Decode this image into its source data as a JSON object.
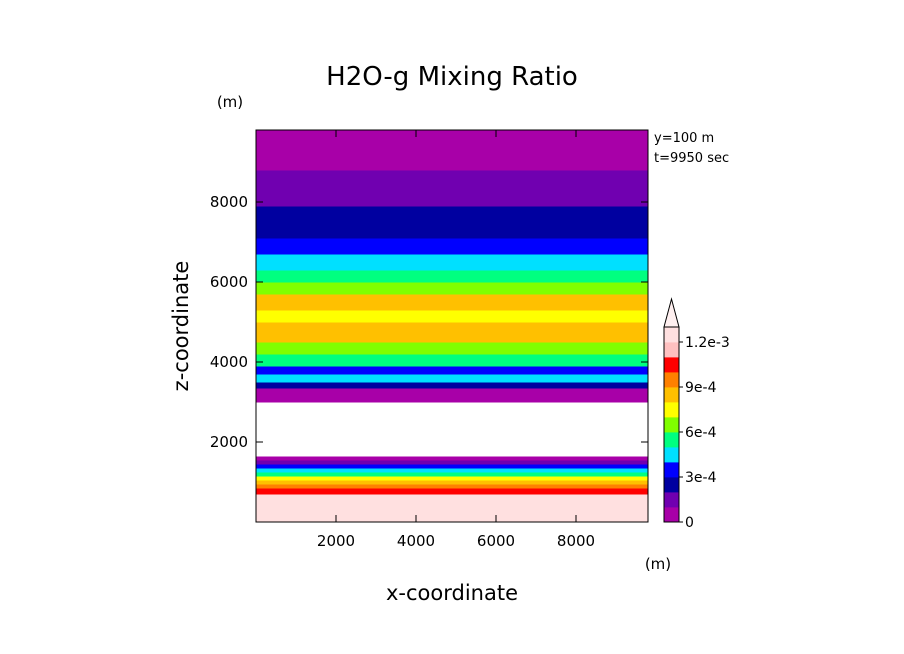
{
  "chart_data": {
    "type": "heatmap",
    "title": "H2O-g Mixing Ratio",
    "xlabel": "x-coordinate",
    "ylabel": "z-coordinate",
    "x_unit": "(m)",
    "y_unit": "(m)",
    "annotations": [
      "y=100 m",
      "t=9950 sec"
    ],
    "xlim": [
      0,
      9800
    ],
    "ylim": [
      0,
      9800
    ],
    "x_ticks": [
      2000,
      4000,
      6000,
      8000
    ],
    "x_tick_labels": [
      "2000",
      "4000",
      "6000",
      "8000"
    ],
    "y_ticks": [
      2000,
      4000,
      6000,
      8000
    ],
    "y_tick_labels": [
      "2000",
      "4000",
      "6000",
      "8000"
    ],
    "colorbar": {
      "labels": [
        "1.2e-3",
        "9e-4",
        "6e-4",
        "3e-4",
        "0"
      ],
      "label_values": [
        0.0012,
        0.0009,
        0.0006,
        0.0003,
        0
      ],
      "levels": [
        0,
        0.0001,
        0.0002,
        0.0003,
        0.0004,
        0.0005,
        0.0006,
        0.0007,
        0.0008,
        0.0009,
        0.001,
        0.0011,
        0.0012
      ],
      "colors": [
        "#a800a8",
        "#7000b0",
        "#0000a0",
        "#0000ff",
        "#00e0ff",
        "#00ff80",
        "#80ff00",
        "#ffff00",
        "#ffc000",
        "#ff8000",
        "#ff0000",
        "#ffc0c0",
        "#ffe0e0"
      ],
      "extend_max": true
    },
    "bands": [
      {
        "zmin": 0,
        "zmax": 700,
        "color": "#ffe0e0"
      },
      {
        "zmin": 700,
        "zmax": 850,
        "color": "#ff0000"
      },
      {
        "zmin": 850,
        "zmax": 950,
        "color": "#ff8000"
      },
      {
        "zmin": 950,
        "zmax": 1050,
        "color": "#ffc000"
      },
      {
        "zmin": 1050,
        "zmax": 1150,
        "color": "#ffff00"
      },
      {
        "zmin": 1150,
        "zmax": 1250,
        "color": "#00ff80"
      },
      {
        "zmin": 1250,
        "zmax": 1350,
        "color": "#00e0ff"
      },
      {
        "zmin": 1350,
        "zmax": 1450,
        "color": "#0000ff"
      },
      {
        "zmin": 1450,
        "zmax": 1550,
        "color": "#7000b0"
      },
      {
        "zmin": 1550,
        "zmax": 1650,
        "color": "#a800a8"
      },
      {
        "zmin": 1650,
        "zmax": 3000,
        "color": "#ffffff"
      },
      {
        "zmin": 3000,
        "zmax": 3350,
        "color": "#a800a8"
      },
      {
        "zmin": 3350,
        "zmax": 3500,
        "color": "#0000a0"
      },
      {
        "zmin": 3500,
        "zmax": 3700,
        "color": "#00e0ff"
      },
      {
        "zmin": 3700,
        "zmax": 3900,
        "color": "#0000ff"
      },
      {
        "zmin": 3900,
        "zmax": 4200,
        "color": "#00ff80"
      },
      {
        "zmin": 4200,
        "zmax": 4500,
        "color": "#80ff00"
      },
      {
        "zmin": 4500,
        "zmax": 5000,
        "color": "#ffc000"
      },
      {
        "zmin": 5000,
        "zmax": 5300,
        "color": "#ffff00"
      },
      {
        "zmin": 5300,
        "zmax": 5700,
        "color": "#ffc000"
      },
      {
        "zmin": 5700,
        "zmax": 6000,
        "color": "#80ff00"
      },
      {
        "zmin": 6000,
        "zmax": 6300,
        "color": "#00ff80"
      },
      {
        "zmin": 6300,
        "zmax": 6700,
        "color": "#00e0ff"
      },
      {
        "zmin": 6700,
        "zmax": 7100,
        "color": "#0000ff"
      },
      {
        "zmin": 7100,
        "zmax": 7900,
        "color": "#0000a0"
      },
      {
        "zmin": 7900,
        "zmax": 8800,
        "color": "#7000b0"
      },
      {
        "zmin": 8800,
        "zmax": 9800,
        "color": "#a800a8"
      }
    ]
  }
}
